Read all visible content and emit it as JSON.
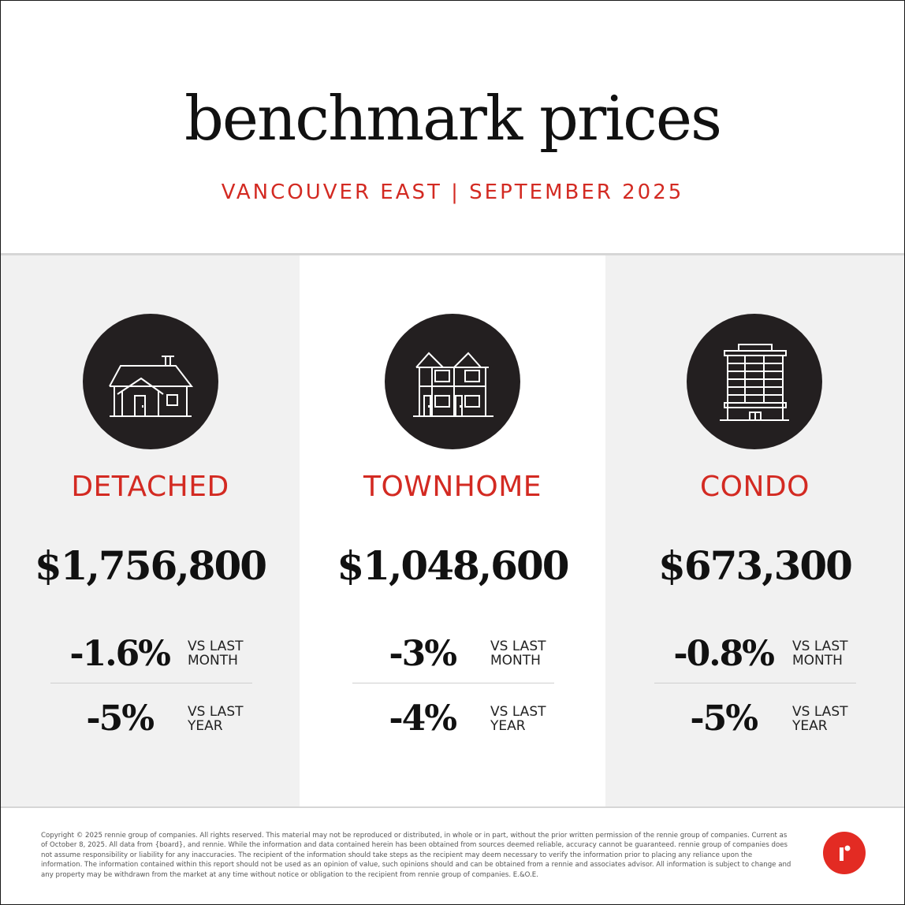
{
  "header": {
    "title": "benchmark prices",
    "subtitle": "VANCOUVER EAST | SEPTEMBER 2025"
  },
  "colors": {
    "accent": "#d32a22",
    "icon_bg": "#231f20",
    "panel_gray": "#f1f1f1",
    "logo_red": "#e32b23"
  },
  "columns": [
    {
      "icon": "detached-house-icon",
      "label": "DETACHED",
      "price": "$1,756,800",
      "month_change": "-1.6%",
      "month_label_1": "VS LAST",
      "month_label_2": "MONTH",
      "year_change": "-5%",
      "year_label_1": "VS LAST",
      "year_label_2": "YEAR"
    },
    {
      "icon": "townhome-icon",
      "label": "TOWNHOME",
      "price": "$1,048,600",
      "month_change": "-3%",
      "month_label_1": "VS LAST",
      "month_label_2": "MONTH",
      "year_change": "-4%",
      "year_label_1": "VS LAST",
      "year_label_2": "YEAR"
    },
    {
      "icon": "condo-building-icon",
      "label": "CONDO",
      "price": "$673,300",
      "month_change": "-0.8%",
      "month_label_1": "VS LAST",
      "month_label_2": "MONTH",
      "year_change": "-5%",
      "year_label_1": "VS LAST",
      "year_label_2": "YEAR"
    }
  ],
  "footer": {
    "disclaimer": "Copyright © 2025 rennie group of companies. All rights reserved. This material may not be reproduced or distributed, in whole or in part, without the prior written permission of the rennie group of companies. Current as of October 8, 2025. All data from {board}, and rennie. While the information and data contained herein has been obtained from sources deemed reliable, accuracy cannot be guaranteed. rennie group of companies does not assume responsibility or liability for any inaccuracies. The recipient of the information should take steps as the recipient may deem necessary to verify the information prior to placing any reliance upon the information. The information contained within this report should not be used as an opinion of value, such opinions should and can be obtained from a rennie and associates advisor. All information is subject to change and any property may be withdrawn from the market at any time without notice or obligation to the recipient from rennie group of companies. E.&O.E.",
    "logo": "rennie-logo"
  }
}
